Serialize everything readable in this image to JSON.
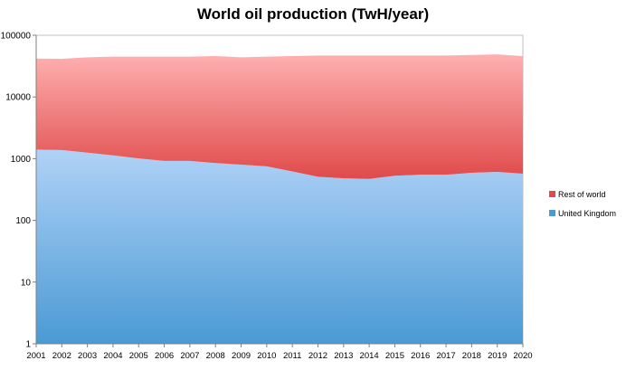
{
  "chart_data": {
    "type": "area",
    "title": "World oil production (TwH/year)",
    "xlabel": "",
    "ylabel": "",
    "y_scale": "log",
    "ylim": [
      1,
      100000
    ],
    "y_ticks": [
      "1",
      "10",
      "100",
      "1000",
      "10000",
      "100000"
    ],
    "stacked": true,
    "grid": false,
    "legend_position": "right",
    "x": [
      "2001",
      "2002",
      "2003",
      "2004",
      "2005",
      "2006",
      "2007",
      "2008",
      "2009",
      "2010",
      "2011",
      "2012",
      "2013",
      "2014",
      "2015",
      "2016",
      "2017",
      "2018",
      "2019",
      "2020"
    ],
    "series": [
      {
        "name": "United Kingdom",
        "color": "#4a9ad4",
        "color_light": "#b0d2f7",
        "values": [
          1400,
          1380,
          1250,
          1130,
          1010,
          920,
          920,
          850,
          800,
          750,
          620,
          510,
          480,
          470,
          530,
          550,
          550,
          590,
          610,
          570
        ]
      },
      {
        "name": "Rest of world",
        "color": "#e04a4a",
        "color_light": "#ffb0b0",
        "values": [
          40600,
          40120,
          42750,
          43870,
          43990,
          44080,
          44080,
          45150,
          43200,
          44250,
          45380,
          46490,
          46520,
          46530,
          46470,
          46450,
          46450,
          47410,
          48390,
          45430
        ]
      }
    ],
    "legend_order": [
      "Rest of world",
      "United Kingdom"
    ]
  }
}
